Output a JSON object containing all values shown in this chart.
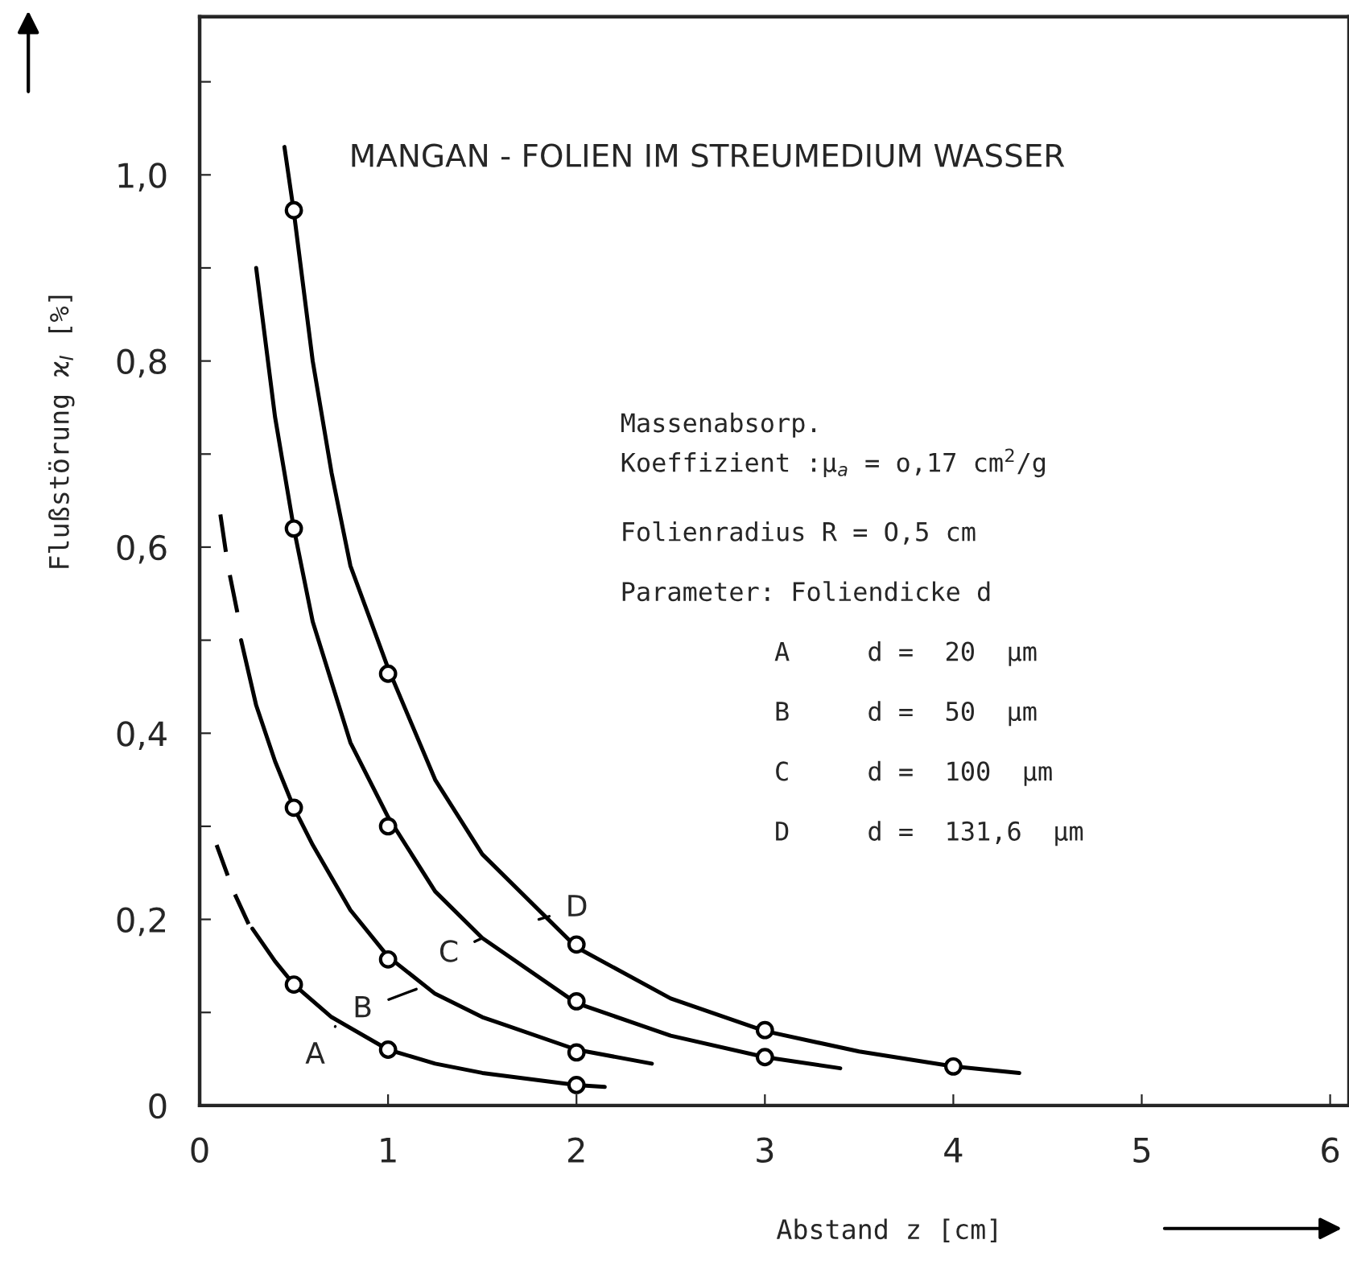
{
  "chart_data": {
    "type": "line",
    "title": "MANGAN - FOLIEN IM STREUMEDIUM WASSER",
    "xlabel": "Abstand z [cm]",
    "ylabel": "Flußstörung ϰ$_{I}$ [%]",
    "xlim": [
      0,
      6.1
    ],
    "ylim": [
      0,
      1.17
    ],
    "xticks": [
      0,
      1,
      2,
      3,
      4,
      5,
      6
    ],
    "yticks": [
      {
        "value": 0,
        "label": "0"
      },
      {
        "value": 0.1,
        "label": null
      },
      {
        "value": 0.2,
        "label": "0,2"
      },
      {
        "value": 0.3,
        "label": null
      },
      {
        "value": 0.4,
        "label": "0,4"
      },
      {
        "value": 0.5,
        "label": null
      },
      {
        "value": 0.6,
        "label": "0,6"
      },
      {
        "value": 0.7,
        "label": null
      },
      {
        "value": 0.8,
        "label": "0,8"
      },
      {
        "value": 0.9,
        "label": null
      },
      {
        "value": 1.0,
        "label": "1,0"
      },
      {
        "value": 1.1,
        "label": null
      }
    ],
    "grid": false,
    "series": [
      {
        "color": "#000000",
        "line_style": "dashed",
        "marker": "none",
        "x": [
          0.09,
          0.18,
          0.26
        ],
        "values": [
          0.28,
          0.23,
          0.195
        ]
      },
      {
        "color": "#000000",
        "line_style": "solid",
        "marker": "none",
        "x": [
          0.28,
          0.4,
          0.5,
          0.7,
          1,
          1.25,
          1.5,
          2,
          2.15
        ],
        "values": [
          0.19,
          0.155,
          0.13,
          0.095,
          0.06,
          0.045,
          0.035,
          0.022,
          0.02
        ]
      },
      {
        "type": "scatter",
        "color": "#000000",
        "marker": "circle",
        "x": [
          0.5,
          1,
          2
        ],
        "values": [
          0.13,
          0.06,
          0.022
        ]
      },
      {
        "color": "#000000",
        "line_style": "dashed",
        "marker": "none",
        "x": [
          0.11,
          0.15,
          0.2
        ],
        "values": [
          0.635,
          0.58,
          0.53
        ]
      },
      {
        "color": "#000000",
        "line_style": "solid",
        "marker": "none",
        "x": [
          0.22,
          0.3,
          0.4,
          0.5,
          0.6,
          0.8,
          1,
          1.25,
          1.5,
          2,
          2.4
        ],
        "values": [
          0.5,
          0.43,
          0.37,
          0.32,
          0.28,
          0.21,
          0.16,
          0.12,
          0.095,
          0.06,
          0.045
        ]
      },
      {
        "type": "scatter",
        "color": "#000000",
        "marker": "circle",
        "x": [
          0.5,
          1,
          2
        ],
        "values": [
          0.32,
          0.157,
          0.057
        ]
      },
      {
        "color": "#000000",
        "line_style": "solid",
        "marker": "none",
        "x": [
          0.3,
          0.4,
          0.5,
          0.6,
          0.8,
          1,
          1.25,
          1.5,
          2,
          2.5,
          3,
          3.4
        ],
        "values": [
          0.9,
          0.74,
          0.62,
          0.52,
          0.39,
          0.31,
          0.23,
          0.18,
          0.11,
          0.075,
          0.052,
          0.04
        ]
      },
      {
        "type": "scatter",
        "color": "#000000",
        "marker": "circle",
        "x": [
          0.5,
          1,
          2,
          3
        ],
        "values": [
          0.62,
          0.3,
          0.112,
          0.052
        ]
      },
      {
        "color": "#000000",
        "line_style": "solid",
        "marker": "none",
        "x": [
          0.45,
          0.5,
          0.6,
          0.7,
          0.8,
          1,
          1.25,
          1.5,
          2,
          2.5,
          3,
          3.5,
          4,
          4.35
        ],
        "values": [
          1.03,
          0.96,
          0.8,
          0.68,
          0.58,
          0.47,
          0.35,
          0.27,
          0.17,
          0.115,
          0.08,
          0.058,
          0.042,
          0.035
        ]
      },
      {
        "type": "scatter",
        "color": "#000000",
        "marker": "circle",
        "x": [
          0.5,
          1,
          2,
          3,
          4
        ],
        "values": [
          0.962,
          0.464,
          0.173,
          0.081,
          0.042
        ]
      }
    ],
    "annotations": [
      {
        "text": "A",
        "x": 0.72,
        "y": 0.085
      },
      {
        "text": "B",
        "x": 1.15,
        "y": 0.125
      },
      {
        "text": "C",
        "x": 1.5,
        "y": 0.18
      },
      {
        "text": "D",
        "x": 1.8,
        "y": 0.2
      },
      "Massenabsorp.",
      "Koeffizient :μ$_{a}$ = o,17 cm$^{2}$/g",
      "Folienradius R = O,5 cm",
      "Parameter: Foliendicke d",
      "A     d =  20  μm",
      "B     d =  50  μm",
      "C     d =  100  μm",
      "D     d =  131,6  μm"
    ]
  }
}
